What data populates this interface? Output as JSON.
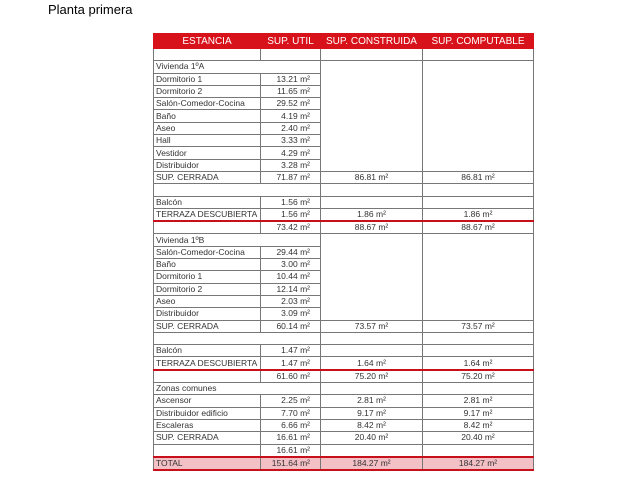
{
  "title": "Planta primera",
  "headers": [
    "ESTANCIA",
    "SUP. UTIL",
    "SUP. CONSTRUIDA",
    "SUP. COMPUTABLE"
  ],
  "unit": "m²",
  "rows": [
    {
      "type": "blank",
      "cells": [
        "",
        "",
        "",
        ""
      ]
    },
    {
      "type": "section",
      "cells": [
        "Vivienda 1ºA",
        "",
        "",
        ""
      ]
    },
    {
      "type": "room",
      "cells": [
        "Dormitorio 1",
        "13.21 m²",
        "",
        ""
      ]
    },
    {
      "type": "room",
      "cells": [
        "Dormitorio 2",
        "11.65 m²",
        "",
        ""
      ]
    },
    {
      "type": "room",
      "cells": [
        "Salón-Comedor-Cocina",
        "29.52 m²",
        "",
        ""
      ]
    },
    {
      "type": "room",
      "cells": [
        "Baño",
        "4.19 m²",
        "",
        ""
      ]
    },
    {
      "type": "room",
      "cells": [
        "Aseo",
        "2.40 m²",
        "",
        ""
      ]
    },
    {
      "type": "room",
      "cells": [
        "Hall",
        "3.33 m²",
        "",
        ""
      ]
    },
    {
      "type": "room",
      "cells": [
        "Vestidor",
        "4.29 m²",
        "",
        ""
      ]
    },
    {
      "type": "room",
      "cells": [
        "Distribuidor",
        "3.28 m²",
        "",
        ""
      ]
    },
    {
      "type": "sum",
      "cells": [
        "SUP. CERRADA",
        "71.87 m²",
        "86.81 m²",
        "86.81 m²"
      ]
    },
    {
      "type": "blank",
      "cells": [
        "",
        "",
        "",
        ""
      ]
    },
    {
      "type": "room",
      "cells": [
        "Balcón",
        "1.56 m²",
        "",
        ""
      ]
    },
    {
      "type": "red",
      "cells": [
        "TERRAZA DESCUBIERTA",
        "1.56 m²",
        "1.86 m²",
        "1.86 m²"
      ]
    },
    {
      "type": "sum",
      "cells": [
        "",
        "73.42 m²",
        "88.67 m²",
        "88.67 m²"
      ]
    },
    {
      "type": "section",
      "cells": [
        "Vivienda 1ºB",
        "",
        "",
        ""
      ]
    },
    {
      "type": "room",
      "cells": [
        "Salón-Comedor-Cocina",
        "29.44 m²",
        "",
        ""
      ]
    },
    {
      "type": "room",
      "cells": [
        "Baño",
        "3.00 m²",
        "",
        ""
      ]
    },
    {
      "type": "room",
      "cells": [
        "Dormitorio 1",
        "10.44 m²",
        "",
        ""
      ]
    },
    {
      "type": "room",
      "cells": [
        "Dormitorio 2",
        "12.14 m²",
        "",
        ""
      ]
    },
    {
      "type": "room",
      "cells": [
        "Aseo",
        "2.03 m²",
        "",
        ""
      ]
    },
    {
      "type": "room",
      "cells": [
        "Distribuidor",
        "3.09 m²",
        "",
        ""
      ]
    },
    {
      "type": "sum",
      "cells": [
        "SUP. CERRADA",
        "60.14 m²",
        "73.57 m²",
        "73.57 m²"
      ]
    },
    {
      "type": "blank",
      "cells": [
        "",
        "",
        "",
        ""
      ]
    },
    {
      "type": "room",
      "cells": [
        "Balcón",
        "1.47 m²",
        "",
        ""
      ]
    },
    {
      "type": "red",
      "cells": [
        "TERRAZA DESCUBIERTA",
        "1.47 m²",
        "1.64 m²",
        "1.64 m²"
      ]
    },
    {
      "type": "sum",
      "cells": [
        "",
        "61.60 m²",
        "75.20 m²",
        "75.20 m²"
      ]
    },
    {
      "type": "section",
      "cells": [
        "Zonas comunes",
        "",
        "",
        ""
      ]
    },
    {
      "type": "sum",
      "cells": [
        "Ascensor",
        "2.25 m²",
        "2.81 m²",
        "2.81 m²"
      ]
    },
    {
      "type": "sum",
      "cells": [
        "Distribuidor edificio",
        "7.70 m²",
        "9.17 m²",
        "9.17 m²"
      ]
    },
    {
      "type": "sum",
      "cells": [
        "Escaleras",
        "6.66 m²",
        "8.42 m²",
        "8.42 m²"
      ]
    },
    {
      "type": "sum",
      "cells": [
        "SUP. CERRADA",
        "16.61 m²",
        "20.40 m²",
        "20.40 m²"
      ]
    },
    {
      "type": "redsum",
      "cells": [
        "",
        "16.61 m²",
        "",
        ""
      ]
    },
    {
      "type": "total",
      "cells": [
        "TOTAL",
        "151.64 m²",
        "184.27 m²",
        "184.27 m²"
      ]
    }
  ],
  "colors": {
    "header": "#d8121b",
    "total_bg": "#f3c0c6",
    "rule": "#c8101a"
  }
}
